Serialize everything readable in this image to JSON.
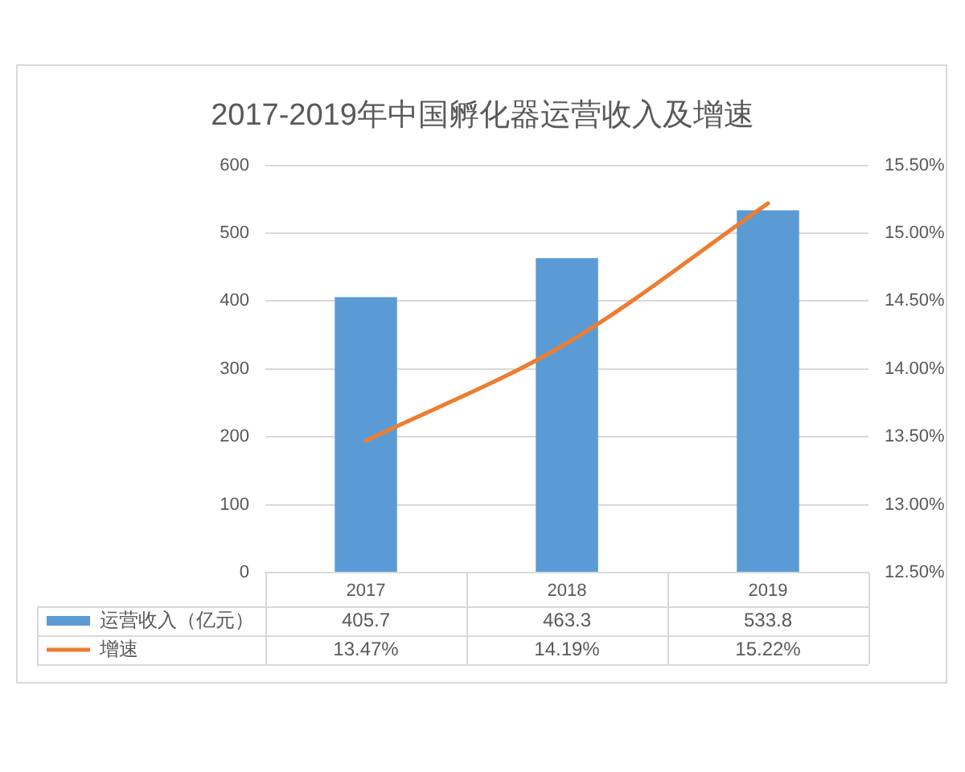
{
  "chart_data": {
    "type": "bar",
    "title": "2017-2019年中国孵化器运营收入及增速",
    "categories": [
      "2017",
      "2018",
      "2019"
    ],
    "series": [
      {
        "name": "运营收入（亿元）",
        "color": "#5b9bd5",
        "values": [
          405.7,
          463.3,
          533.8
        ],
        "value_labels": [
          "405.7",
          "463.3",
          "533.8"
        ]
      },
      {
        "name": "增速",
        "type": "line",
        "axis": "y2",
        "color": "#ed7d31",
        "values": [
          13.47,
          14.19,
          15.22
        ],
        "value_labels": [
          "13.47%",
          "14.19%",
          "15.22%"
        ]
      }
    ],
    "ylim": [
      0,
      600
    ],
    "yticks": [
      0,
      100,
      200,
      300,
      400,
      500,
      600
    ],
    "y2lim": [
      12.5,
      15.5
    ],
    "y2ticks": [
      {
        "value": 12.5,
        "label": "12.50%"
      },
      {
        "value": 13,
        "label": "13.00%"
      },
      {
        "value": 13.5,
        "label": "13.50%"
      },
      {
        "value": 14,
        "label": "14.00%"
      },
      {
        "value": 14.5,
        "label": "14.50%"
      },
      {
        "value": 15,
        "label": "15.00%"
      },
      {
        "value": 15.5,
        "label": "15.50%"
      }
    ],
    "grid": "y",
    "legend": "bottom",
    "marker": "none"
  }
}
